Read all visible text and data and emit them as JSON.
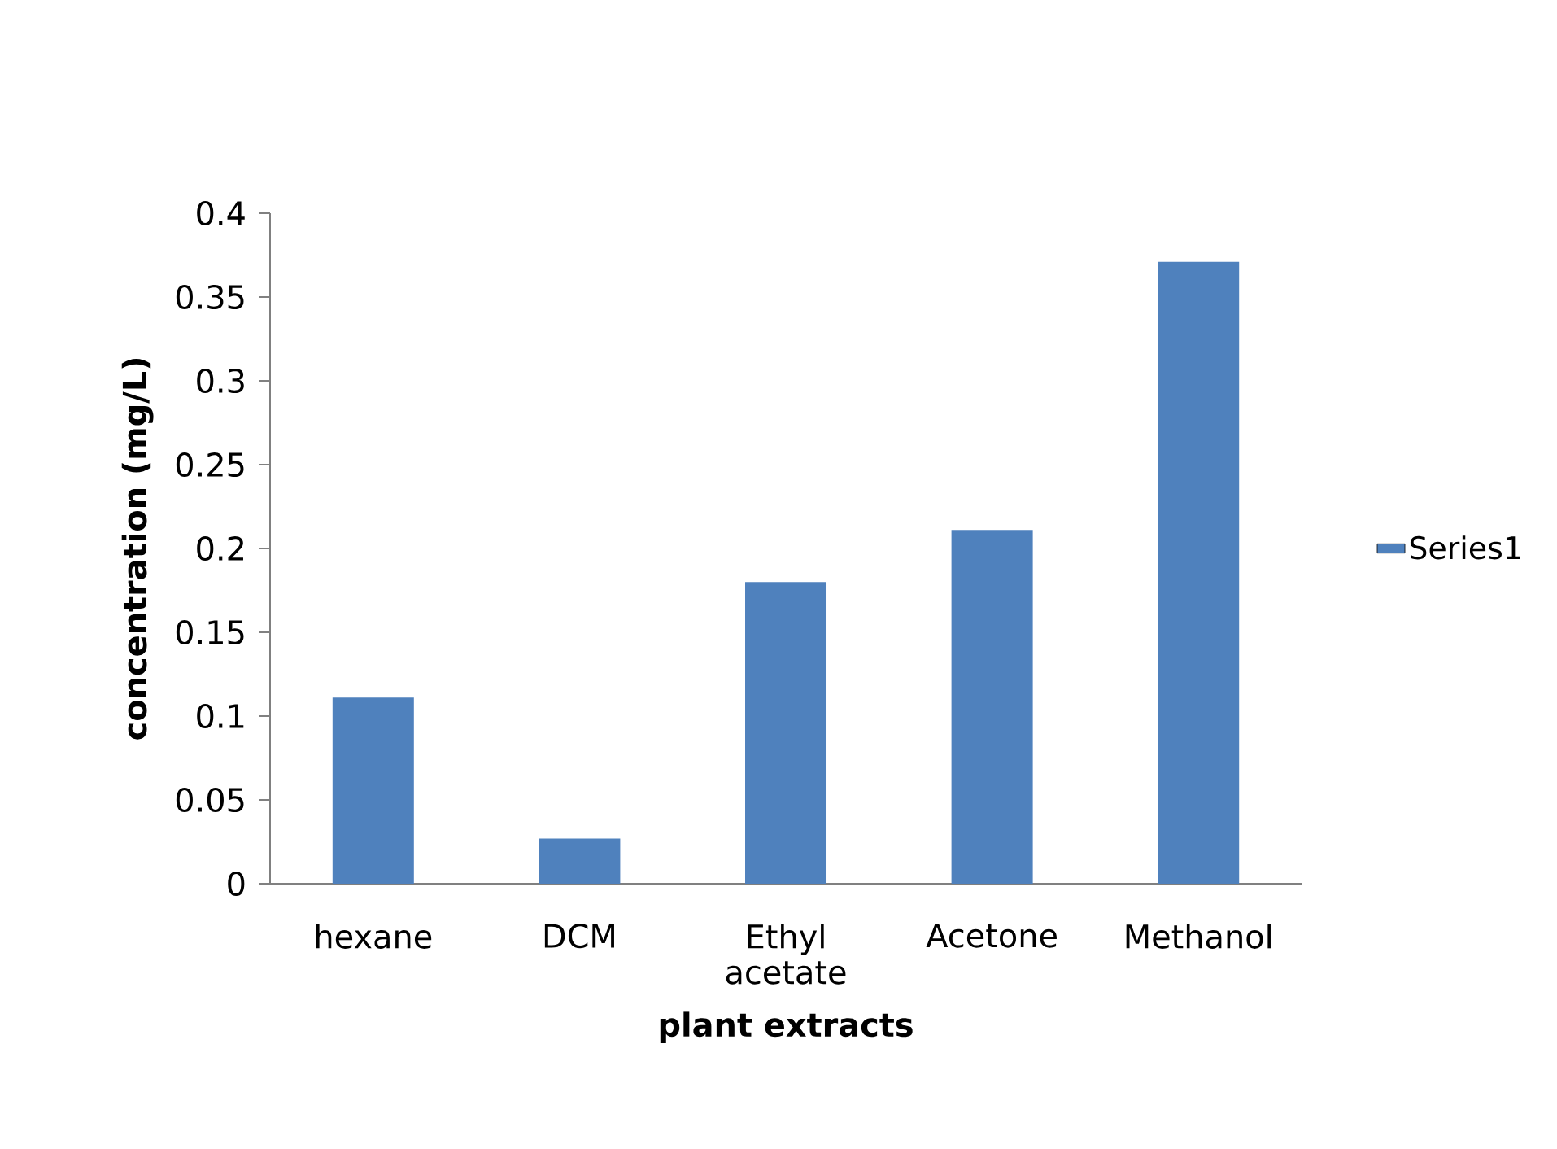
{
  "chart_data": {
    "type": "bar",
    "xlabel": "plant extracts",
    "ylabel": "concentration (mg/L)",
    "categories": [
      "hexane",
      "DCM",
      "Ethyl acetate",
      "Acetone",
      "Methanol"
    ],
    "series": [
      {
        "name": "Series1",
        "color": "#4f81bd",
        "values": [
          0.111,
          0.027,
          0.18,
          0.211,
          0.371
        ]
      }
    ],
    "ylim": [
      0,
      0.4
    ],
    "yticks": [
      0,
      0.05,
      0.1,
      0.15,
      0.2,
      0.25,
      0.3,
      0.35,
      0.4
    ],
    "grid": false,
    "legend": "right"
  }
}
